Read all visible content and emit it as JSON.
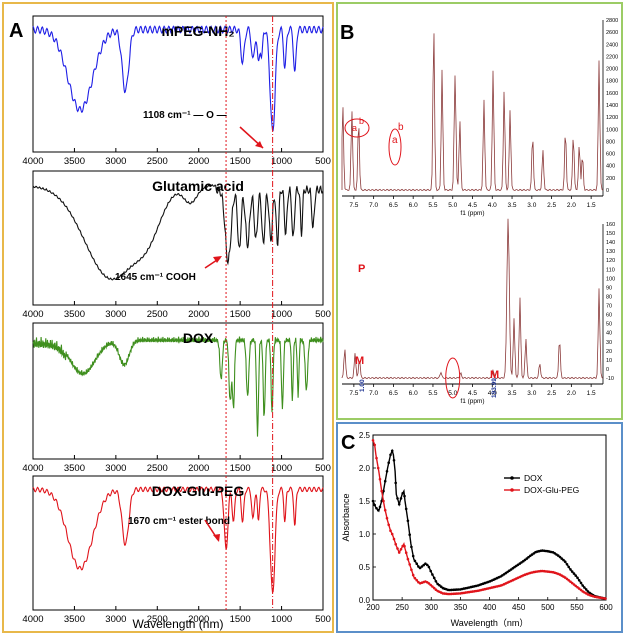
{
  "panels": {
    "a": "A",
    "b": "B",
    "c": "C"
  },
  "colors": {
    "mpeg": "#1f1fe6",
    "glu": "#111111",
    "dox": "#3f8f1e",
    "doxgp": "#e0141b",
    "nmr": "#8b3a3a",
    "frame_a": "#e8b84a",
    "frame_b": "#9ccc65",
    "frame_c": "#5b8fc9"
  },
  "ftir": {
    "x_ticks": [
      "4000",
      "3500",
      "3000",
      "2500",
      "2000",
      "1500",
      "1000",
      "500"
    ],
    "xlabel": "Wavelength (nm)",
    "spectra": [
      {
        "key": "mpeg",
        "title": "mPEG-NH₂",
        "annotation": "1108 cm⁻¹  — O —"
      },
      {
        "key": "glu",
        "title": "Glutamic acid",
        "annotation": "1645 cm⁻¹ COOH"
      },
      {
        "key": "dox",
        "title": "DOX",
        "annotation": ""
      },
      {
        "key": "doxgp",
        "title": "DOX-Glu-PEG",
        "annotation": "1670 cm⁻¹ ester bond"
      }
    ]
  },
  "nmr": {
    "top": {
      "xlabel": "f1 (ppm)",
      "x_ticks": [
        "7.5",
        "7.0",
        "6.5",
        "6.0",
        "5.5",
        "5.0",
        "4.5",
        "4.0",
        "3.5",
        "3.0",
        "2.5",
        "2.0",
        "1.5"
      ],
      "y_ticks": [
        "2800",
        "2600",
        "2400",
        "2200",
        "2000",
        "1800",
        "1600",
        "1400",
        "1200",
        "1000",
        "800",
        "600",
        "400",
        "200",
        "0"
      ],
      "marks": [
        "a",
        "b",
        "a",
        "b"
      ]
    },
    "bottom": {
      "xlabel": "f1 (ppm)",
      "x_ticks": [
        "7.5",
        "7.0",
        "6.5",
        "6.0",
        "5.5",
        "5.0",
        "4.5",
        "4.0",
        "3.5",
        "3.0",
        "2.5",
        "2.0",
        "1.5"
      ],
      "y_ticks": [
        "160",
        "150",
        "140",
        "130",
        "120",
        "110",
        "100",
        "90",
        "80",
        "70",
        "60",
        "50",
        "40",
        "30",
        "20",
        "10",
        "0",
        "-10"
      ],
      "marks": [
        "P",
        "M",
        "M"
      ],
      "integrals": [
        "1.00",
        "193.99"
      ]
    }
  },
  "chart_data": {
    "type": "line",
    "xlabel": "Wavelength（nm）",
    "ylabel": "Absorbance",
    "xlim": [
      200,
      600
    ],
    "ylim": [
      0.0,
      2.5
    ],
    "x_ticks": [
      "200",
      "250",
      "300",
      "350",
      "400",
      "450",
      "500",
      "550",
      "600"
    ],
    "y_ticks": [
      "0.0",
      "0.5",
      "1.0",
      "1.5",
      "2.0",
      "2.5"
    ],
    "legend_position": "top-right",
    "series": [
      {
        "name": "DOX",
        "color": "#000000",
        "x": [
          200,
          205,
          210,
          215,
          220,
          225,
          230,
          233,
          235,
          238,
          240,
          245,
          250,
          253,
          255,
          260,
          265,
          270,
          280,
          290,
          295,
          300,
          310,
          320,
          330,
          350,
          380,
          400,
          420,
          440,
          460,
          470,
          480,
          490,
          500,
          510,
          520,
          530,
          540,
          550,
          560,
          570,
          580,
          600
        ],
        "y": [
          1.5,
          1.4,
          1.35,
          1.5,
          1.75,
          2.0,
          2.2,
          2.26,
          2.2,
          1.95,
          1.6,
          1.45,
          1.6,
          1.65,
          1.5,
          1.2,
          0.85,
          0.62,
          0.48,
          0.55,
          0.52,
          0.42,
          0.25,
          0.18,
          0.15,
          0.16,
          0.22,
          0.28,
          0.36,
          0.48,
          0.6,
          0.67,
          0.73,
          0.75,
          0.74,
          0.72,
          0.66,
          0.58,
          0.45,
          0.35,
          0.22,
          0.12,
          0.06,
          0.02
        ]
      },
      {
        "name": "DOX-Glu-PEG",
        "color": "#e0141b",
        "x": [
          200,
          203,
          205,
          210,
          215,
          220,
          225,
          230,
          233,
          235,
          240,
          245,
          250,
          253,
          255,
          260,
          270,
          280,
          290,
          295,
          300,
          310,
          320,
          330,
          350,
          380,
          400,
          420,
          440,
          460,
          470,
          480,
          490,
          500,
          510,
          520,
          530,
          540,
          550,
          560,
          570,
          580,
          600
        ],
        "y": [
          2.42,
          2.35,
          2.2,
          1.95,
          1.65,
          1.4,
          1.2,
          1.05,
          1.0,
          0.95,
          0.82,
          0.72,
          0.8,
          0.85,
          0.78,
          0.62,
          0.35,
          0.25,
          0.28,
          0.26,
          0.22,
          0.14,
          0.1,
          0.09,
          0.1,
          0.14,
          0.18,
          0.22,
          0.3,
          0.38,
          0.41,
          0.43,
          0.44,
          0.43,
          0.42,
          0.39,
          0.34,
          0.27,
          0.2,
          0.13,
          0.08,
          0.05,
          0.02
        ]
      }
    ]
  }
}
